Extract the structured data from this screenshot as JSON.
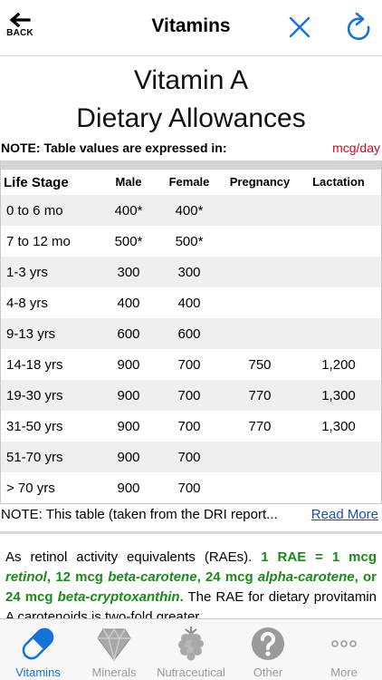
{
  "nav": {
    "back_label": "BACK",
    "title": "Vitamins"
  },
  "heading": {
    "line1": "Vitamin A",
    "line2": "Dietary Allowances"
  },
  "unit_note": {
    "label": "NOTE: Table values are expressed in:",
    "unit": "mcg/day"
  },
  "table": {
    "headers": [
      "Life Stage",
      "Male",
      "Female",
      "Pregnancy",
      "Lactation"
    ],
    "rows": [
      [
        "0 to 6 mo",
        "400*",
        "400*",
        "",
        ""
      ],
      [
        "7 to 12 mo",
        "500*",
        "500*",
        "",
        ""
      ],
      [
        "1-3 yrs",
        "300",
        "300",
        "",
        ""
      ],
      [
        "4-8 yrs",
        "400",
        "400",
        "",
        ""
      ],
      [
        "9-13 yrs",
        "600",
        "600",
        "",
        ""
      ],
      [
        "14-18 yrs",
        "900",
        "700",
        "750",
        "1,200"
      ],
      [
        "19-30 yrs",
        "900",
        "700",
        "770",
        "1,300"
      ],
      [
        "31-50 yrs",
        "900",
        "700",
        "770",
        "1,300"
      ],
      [
        "51-70 yrs",
        "900",
        "700",
        "",
        ""
      ],
      [
        "> 70 yrs",
        "900",
        "700",
        "",
        ""
      ]
    ]
  },
  "dri_note": {
    "text": "NOTE: This table (taken from the DRI report...",
    "link": "Read More"
  },
  "description": {
    "intro": "As retinol activity equivalents (RAEs).",
    "eq1": "1 RAE = 1 mcg",
    "retinol": "retinol",
    "eq2": ", 12 mcg",
    "beta_carotene": "beta-carotene",
    "eq3": ", 24 mcg",
    "alpha_carotene": "alpha-carotene",
    "eq4": ", or 24 mcg",
    "beta_cryptoxanthin": "beta-cryptoxanthin",
    "eq5": ".",
    "rest": "The RAE for dietary provitamin A carotenoids is two-fold greater"
  },
  "tabs": [
    {
      "label": "Vitamins",
      "icon": "capsule-icon",
      "active": true
    },
    {
      "label": "Minerals",
      "icon": "diamond-icon",
      "active": false
    },
    {
      "label": "Nutraceutical",
      "icon": "raspberry-icon",
      "active": false
    },
    {
      "label": "Other",
      "icon": "question-icon",
      "active": false
    },
    {
      "label": "More",
      "icon": "more-dots-icon",
      "active": false
    }
  ],
  "colors": {
    "accent": "#1672d6",
    "unit_red": "#e0001a",
    "green_text": "#1a8a1a",
    "link": "#1a4fb5"
  }
}
